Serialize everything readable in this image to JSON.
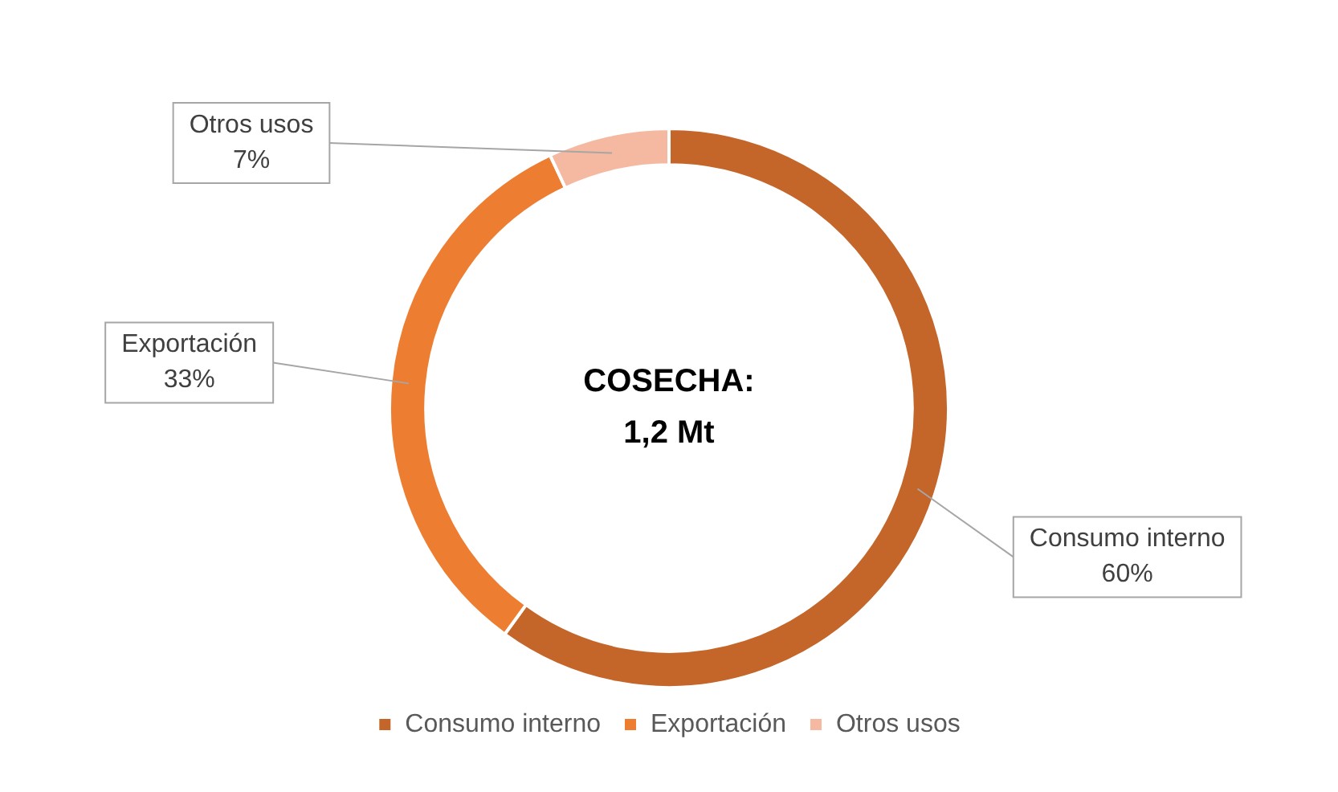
{
  "chart_data": {
    "type": "donut",
    "categories": [
      "Consumo interno",
      "Exportación",
      "Otros usos"
    ],
    "values": [
      60,
      33,
      7
    ],
    "colors": [
      "#c4652a",
      "#ed7d31",
      "#f4b9a0"
    ],
    "value_labels": [
      "60%",
      "33%",
      "7%"
    ],
    "annotations": [
      "COSECHA:\n1,2 Mt"
    ],
    "legend": "bottom"
  }
}
